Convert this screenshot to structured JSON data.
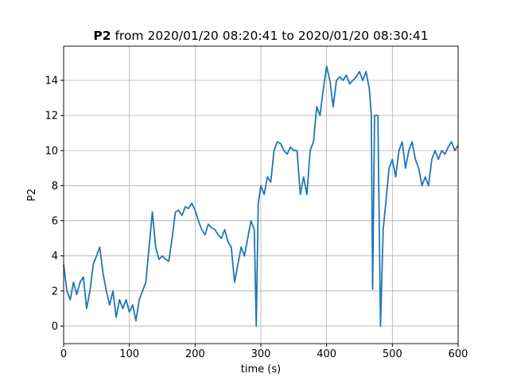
{
  "chart_data": {
    "type": "line",
    "title_name": "P2",
    "title_range": "from 2020/01/20 08:20:41 to 2020/01/20 08:30:41",
    "xlabel": "time (s)",
    "ylabel": "P2",
    "x": [
      0,
      5,
      10,
      15,
      20,
      25,
      30,
      35,
      40,
      45,
      50,
      55,
      60,
      65,
      70,
      75,
      80,
      85,
      90,
      95,
      100,
      105,
      110,
      115,
      120,
      125,
      130,
      135,
      140,
      145,
      150,
      155,
      160,
      165,
      170,
      175,
      180,
      185,
      190,
      195,
      200,
      205,
      210,
      215,
      220,
      225,
      230,
      235,
      240,
      245,
      250,
      255,
      260,
      265,
      270,
      275,
      280,
      285,
      290,
      293,
      296,
      300,
      305,
      310,
      315,
      320,
      325,
      330,
      335,
      340,
      345,
      350,
      355,
      360,
      365,
      370,
      375,
      380,
      385,
      390,
      395,
      400,
      405,
      410,
      415,
      420,
      425,
      430,
      435,
      440,
      445,
      450,
      455,
      460,
      465,
      468,
      470,
      473,
      478,
      482,
      486,
      490,
      495,
      500,
      505,
      510,
      515,
      520,
      525,
      530,
      535,
      540,
      545,
      550,
      555,
      560,
      565,
      570,
      575,
      580,
      585,
      590,
      595,
      600
    ],
    "values": [
      3.5,
      2,
      1.5,
      2.5,
      1.8,
      2.5,
      2.8,
      1,
      2,
      3.5,
      4,
      4.5,
      3,
      2,
      1.2,
      2,
      0.5,
      1.5,
      1,
      1.5,
      0.8,
      1.2,
      0.3,
      1.5,
      2,
      2.5,
      4.5,
      6.5,
      4.5,
      3.8,
      4,
      3.8,
      3.7,
      5,
      6.5,
      6.6,
      6.3,
      6.8,
      6.7,
      7,
      6.6,
      6,
      5.5,
      5.2,
      5.8,
      5.6,
      5.5,
      5.2,
      5,
      5.5,
      4.8,
      4.5,
      2.5,
      3.5,
      4.5,
      4,
      5,
      6,
      5.5,
      0,
      7,
      8,
      7.5,
      8.5,
      8.2,
      10,
      10.5,
      10.4,
      10,
      9.8,
      10.2,
      10,
      10,
      7.5,
      8.5,
      7.5,
      10,
      10.5,
      12.5,
      12,
      13.5,
      14.8,
      14,
      12.5,
      14,
      14.2,
      14,
      14.3,
      13.8,
      14,
      14.2,
      14.5,
      14,
      14.5,
      13.5,
      12,
      2.1,
      12,
      12,
      0,
      5.5,
      7,
      9,
      9.5,
      8.5,
      10,
      10.5,
      9,
      10,
      10.5,
      9.5,
      9,
      8,
      8.5,
      8,
      9.5,
      10,
      9.5,
      10,
      9.8,
      10.2,
      10.5,
      10,
      10.3
    ],
    "color": "#1f77b4",
    "xlim": [
      0,
      600
    ],
    "xticks": [
      0,
      100,
      200,
      300,
      400,
      500,
      600
    ],
    "ylim": [
      -1.0,
      15.95
    ],
    "yticks": [
      0,
      2,
      4,
      6,
      8,
      10,
      12,
      14
    ],
    "grid": true
  }
}
